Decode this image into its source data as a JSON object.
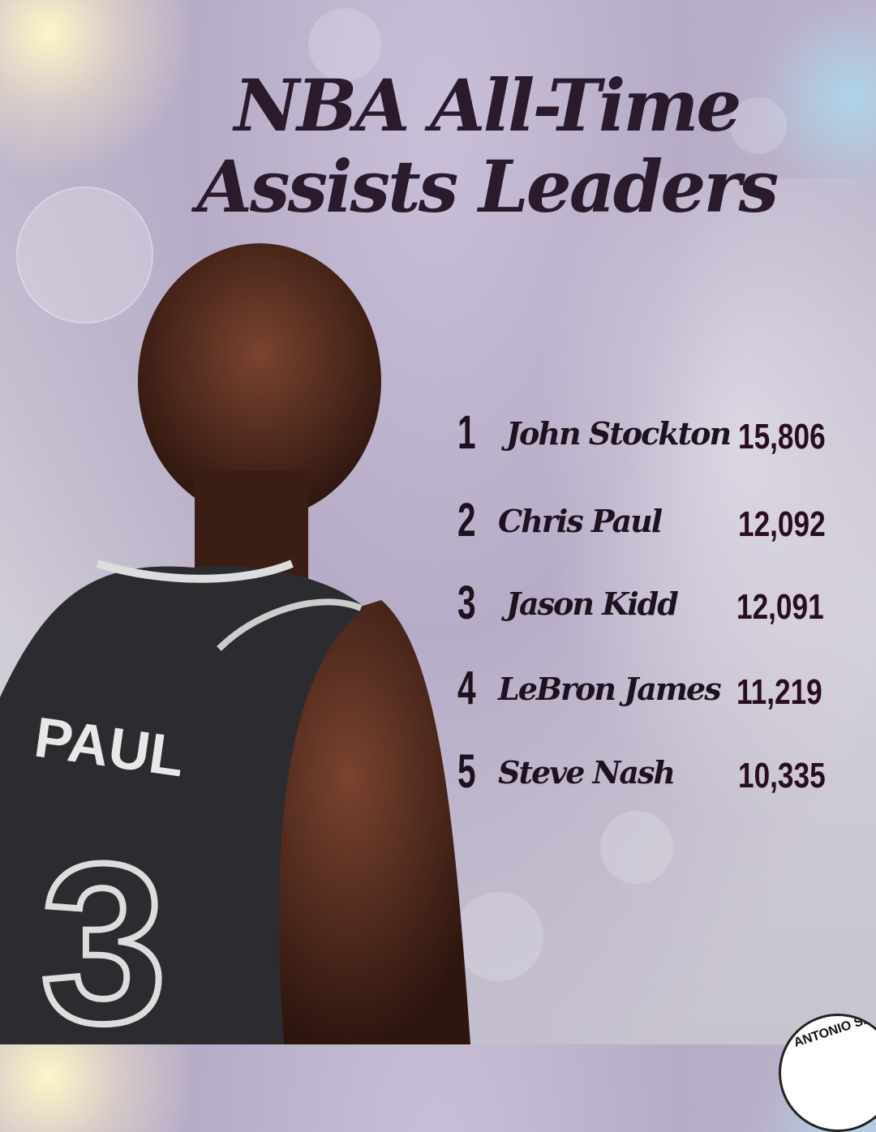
{
  "title": {
    "line1": "NBA All-Time",
    "line2": "Assists Leaders"
  },
  "leaders": [
    {
      "rank": "1",
      "name": "John Stockton",
      "assists": "15,806"
    },
    {
      "rank": "2",
      "name": "Chris Paul",
      "assists": "12,092"
    },
    {
      "rank": "3",
      "name": "Jason Kidd",
      "assists": "12,091"
    },
    {
      "rank": "4",
      "name": "LeBron James",
      "assists": "11,219"
    },
    {
      "rank": "5",
      "name": "Steve Nash",
      "assists": "10,335"
    }
  ],
  "jersey": {
    "name": "PAUL",
    "number": "3"
  },
  "logo": {
    "text": "ANTONIO SP"
  },
  "colors": {
    "text": "#2a1a2c",
    "background": "#c6bfd0",
    "jersey": "#2b2b30"
  }
}
